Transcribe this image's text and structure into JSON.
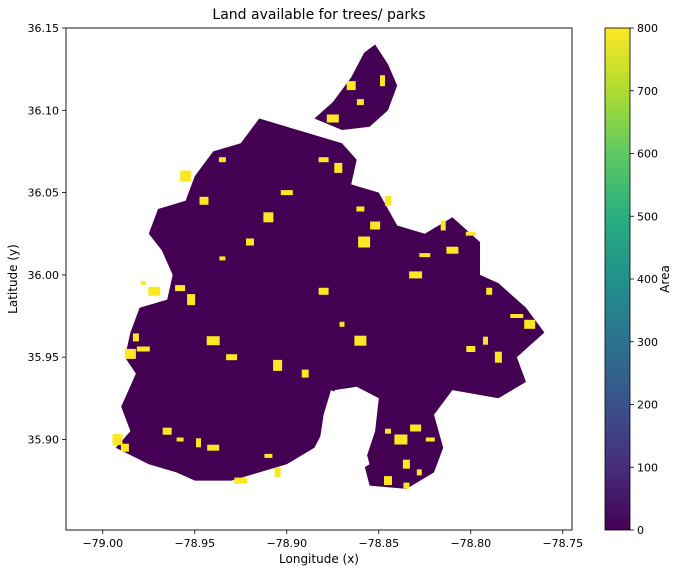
{
  "chart_data": {
    "type": "heatmap",
    "title": "Land available for trees/ parks",
    "xlabel": "Longitude (x)",
    "ylabel": "Latitude (y)",
    "xlim": [
      -79.02,
      -78.745
    ],
    "ylim": [
      35.845,
      36.15
    ],
    "x_ticks": [
      -79.0,
      -78.95,
      -78.9,
      -78.85,
      -78.8,
      -78.75
    ],
    "x_tick_labels": [
      "−79.00",
      "−78.95",
      "−78.90",
      "−78.85",
      "−78.80",
      "−78.75"
    ],
    "y_ticks": [
      35.9,
      35.95,
      36.0,
      36.05,
      36.1,
      36.15
    ],
    "y_tick_labels": [
      "35.90",
      "35.95",
      "36.00",
      "36.05",
      "36.10",
      "36.15"
    ],
    "colorbar": {
      "label": "Area",
      "min": 0,
      "max": 800,
      "ticks": [
        0,
        100,
        200,
        300,
        400,
        500,
        600,
        700,
        800
      ],
      "colormap": "viridis"
    },
    "grid": false,
    "value_low": 0,
    "value_high": 800,
    "colors": {
      "low": "#440154",
      "high": "#fde725"
    },
    "land_region_outline": [
      [
        -78.993,
        35.895
      ],
      [
        -78.985,
        35.905
      ],
      [
        -78.99,
        35.92
      ],
      [
        -78.982,
        35.94
      ],
      [
        -78.988,
        35.95
      ],
      [
        -78.985,
        35.965
      ],
      [
        -78.98,
        35.98
      ],
      [
        -78.965,
        35.985
      ],
      [
        -78.962,
        36.0
      ],
      [
        -78.968,
        36.015
      ],
      [
        -78.975,
        36.025
      ],
      [
        -78.97,
        36.04
      ],
      [
        -78.955,
        36.045
      ],
      [
        -78.95,
        36.06
      ],
      [
        -78.94,
        36.075
      ],
      [
        -78.925,
        36.08
      ],
      [
        -78.915,
        36.095
      ],
      [
        -78.9,
        36.09
      ],
      [
        -78.885,
        36.085
      ],
      [
        -78.87,
        36.08
      ],
      [
        -78.862,
        36.07
      ],
      [
        -78.865,
        36.055
      ],
      [
        -78.85,
        36.05
      ],
      [
        -78.84,
        36.03
      ],
      [
        -78.825,
        36.025
      ],
      [
        -78.81,
        36.035
      ],
      [
        -78.795,
        36.02
      ],
      [
        -78.795,
        36.0
      ],
      [
        -78.785,
        35.995
      ],
      [
        -78.77,
        35.98
      ],
      [
        -78.76,
        35.965
      ],
      [
        -78.775,
        35.95
      ],
      [
        -78.77,
        35.935
      ],
      [
        -78.785,
        35.925
      ],
      [
        -78.81,
        35.93
      ],
      [
        -78.82,
        35.915
      ],
      [
        -78.815,
        35.895
      ],
      [
        -78.82,
        35.88
      ],
      [
        -78.835,
        35.87
      ],
      [
        -78.855,
        35.872
      ],
      [
        -78.858,
        35.885
      ],
      [
        -78.852,
        35.905
      ],
      [
        -78.85,
        35.925
      ],
      [
        -78.862,
        35.932
      ],
      [
        -78.874,
        35.93
      ],
      [
        -78.878,
        35.91
      ],
      [
        -78.885,
        35.895
      ],
      [
        -78.9,
        35.885
      ],
      [
        -78.915,
        35.88
      ],
      [
        -78.93,
        35.875
      ],
      [
        -78.95,
        35.875
      ],
      [
        -78.96,
        35.88
      ],
      [
        -78.975,
        35.885
      ]
    ],
    "north_lobe_outline": [
      [
        -78.885,
        36.095
      ],
      [
        -78.875,
        36.105
      ],
      [
        -78.865,
        36.12
      ],
      [
        -78.858,
        36.135
      ],
      [
        -78.852,
        36.14
      ],
      [
        -78.845,
        36.128
      ],
      [
        -78.84,
        36.115
      ],
      [
        -78.845,
        36.1
      ],
      [
        -78.855,
        36.09
      ],
      [
        -78.87,
        36.088
      ]
    ],
    "high_value_patches": [
      [
        -78.978,
        35.995
      ],
      [
        -78.972,
        35.99
      ],
      [
        -78.958,
        35.992
      ],
      [
        -78.952,
        35.985
      ],
      [
        -78.982,
        35.962
      ],
      [
        -78.978,
        35.955
      ],
      [
        -78.985,
        35.952
      ],
      [
        -78.965,
        35.905
      ],
      [
        -78.958,
        35.9
      ],
      [
        -78.948,
        35.898
      ],
      [
        -78.94,
        35.895
      ],
      [
        -78.992,
        35.9
      ],
      [
        -78.988,
        35.895
      ],
      [
        -78.845,
        35.905
      ],
      [
        -78.838,
        35.9
      ],
      [
        -78.83,
        35.907
      ],
      [
        -78.822,
        35.9
      ],
      [
        -78.835,
        35.885
      ],
      [
        -78.828,
        35.88
      ],
      [
        -78.858,
        36.02
      ],
      [
        -78.852,
        36.03
      ],
      [
        -78.86,
        36.04
      ],
      [
        -78.845,
        36.045
      ],
      [
        -78.83,
        36.0
      ],
      [
        -78.825,
        36.012
      ],
      [
        -78.865,
        36.115
      ],
      [
        -78.86,
        36.105
      ],
      [
        -78.848,
        36.118
      ],
      [
        -78.875,
        36.095
      ],
      [
        -78.88,
        36.07
      ],
      [
        -78.872,
        36.065
      ],
      [
        -78.79,
        35.99
      ],
      [
        -78.775,
        35.975
      ],
      [
        -78.768,
        35.97
      ],
      [
        -78.8,
        35.955
      ],
      [
        -78.785,
        35.95
      ],
      [
        -78.792,
        35.96
      ],
      [
        -78.9,
        36.05
      ],
      [
        -78.91,
        36.035
      ],
      [
        -78.92,
        36.02
      ],
      [
        -78.935,
        36.01
      ],
      [
        -78.94,
        35.96
      ],
      [
        -78.93,
        35.95
      ],
      [
        -78.905,
        35.945
      ],
      [
        -78.89,
        35.94
      ],
      [
        -78.87,
        35.97
      ],
      [
        -78.86,
        35.96
      ],
      [
        -78.88,
        35.99
      ],
      [
        -78.91,
        35.89
      ],
      [
        -78.905,
        35.88
      ],
      [
        -78.925,
        35.875
      ],
      [
        -78.955,
        36.06
      ],
      [
        -78.945,
        36.045
      ],
      [
        -78.935,
        36.07
      ],
      [
        -78.815,
        36.03
      ],
      [
        -78.81,
        36.015
      ],
      [
        -78.8,
        36.025
      ],
      [
        -78.845,
        35.875
      ],
      [
        -78.835,
        35.872
      ]
    ],
    "empty_region_outline": [
      [
        -78.876,
        35.93
      ],
      [
        -78.866,
        35.925
      ],
      [
        -78.86,
        35.905
      ],
      [
        -78.855,
        35.885
      ],
      [
        -78.87,
        35.875
      ],
      [
        -78.88,
        35.88
      ],
      [
        -78.882,
        35.9
      ],
      [
        -78.88,
        35.915
      ]
    ]
  }
}
